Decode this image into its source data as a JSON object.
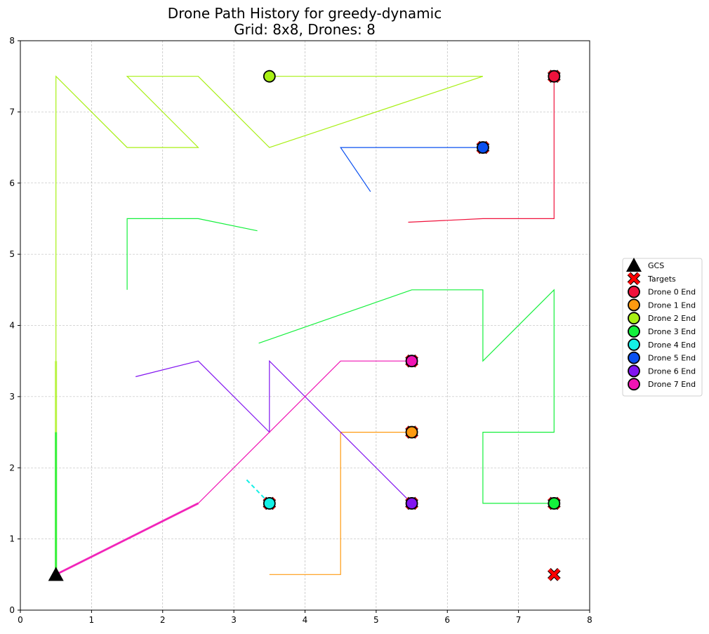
{
  "chart_data": {
    "type": "line",
    "title_line1": "Drone Path History for greedy-dynamic",
    "title_line2": "Grid: 8x8, Drones: 8",
    "xlabel": "",
    "ylabel": "",
    "xlim": [
      0,
      8
    ],
    "ylim": [
      0,
      8
    ],
    "xticks": [
      "0",
      "1",
      "2",
      "3",
      "4",
      "5",
      "6",
      "7",
      "8"
    ],
    "yticks": [
      "0",
      "1",
      "2",
      "3",
      "4",
      "5",
      "6",
      "7",
      "8"
    ],
    "grid": true,
    "legend_position": "right",
    "gcs": {
      "label": "GCS",
      "x": 0.5,
      "y": 0.5,
      "color": "#000000"
    },
    "targets": {
      "label": "Targets",
      "color": "#ff0000",
      "points": [
        [
          7.5,
          7.5
        ],
        [
          6.5,
          6.5
        ],
        [
          5.5,
          3.5
        ],
        [
          5.5,
          2.5
        ],
        [
          3.5,
          1.5
        ],
        [
          5.5,
          1.5
        ],
        [
          7.5,
          1.5
        ],
        [
          7.5,
          0.5
        ]
      ]
    },
    "series": [
      {
        "name": "Drone 0 End",
        "color": "#f0123c",
        "path": [
          [
            5.45,
            5.45
          ],
          [
            6.5,
            5.5
          ],
          [
            7.5,
            5.5
          ],
          [
            7.5,
            7.5
          ]
        ],
        "end": [
          7.5,
          7.5
        ]
      },
      {
        "name": "Drone 1 End",
        "color": "#ff9a10",
        "path": [
          [
            3.5,
            0.5
          ],
          [
            4.5,
            0.5
          ],
          [
            4.5,
            2.5
          ],
          [
            5.5,
            2.5
          ]
        ],
        "end": [
          5.5,
          2.5
        ]
      },
      {
        "name": "Drone 2 End",
        "color": "#a8f014",
        "path": [
          [
            0.5,
            3.5
          ],
          [
            0.5,
            7.5
          ],
          [
            1.5,
            6.5
          ],
          [
            2.5,
            6.5
          ],
          [
            1.5,
            7.5
          ],
          [
            2.5,
            7.5
          ],
          [
            3.5,
            6.5
          ],
          [
            6.5,
            7.5
          ],
          [
            3.5,
            7.5
          ]
        ],
        "end": [
          3.5,
          7.5
        ],
        "thick_segments": [
          [
            [
              0.5,
              0.5
            ],
            [
              0.5,
              3.5
            ]
          ]
        ]
      },
      {
        "name": "Drone 3 End",
        "color": "#14f03c",
        "path": [
          [
            3.35,
            3.75
          ],
          [
            5.5,
            4.5
          ],
          [
            6.5,
            4.5
          ],
          [
            6.5,
            3.5
          ],
          [
            7.5,
            4.5
          ],
          [
            7.5,
            2.5
          ],
          [
            6.5,
            2.5
          ],
          [
            6.5,
            1.5
          ],
          [
            7.5,
            1.5
          ]
        ],
        "extra_path": [
          [
            1.5,
            4.5
          ],
          [
            1.5,
            5.5
          ],
          [
            2.5,
            5.5
          ],
          [
            3.33,
            5.33
          ]
        ],
        "end": [
          7.5,
          1.5
        ],
        "thick_segments": [
          [
            [
              0.5,
              0.5
            ],
            [
              0.5,
              2.5
            ]
          ]
        ]
      },
      {
        "name": "Drone 4 End",
        "color": "#14f0e6",
        "path": [
          [
            3.18,
            1.83
          ],
          [
            3.5,
            1.5
          ]
        ],
        "dashed": true,
        "end": [
          3.5,
          1.5
        ]
      },
      {
        "name": "Drone 5 End",
        "color": "#0a50f0",
        "path": [
          [
            4.92,
            5.88
          ],
          [
            4.5,
            6.5
          ],
          [
            6.5,
            6.5
          ]
        ],
        "end": [
          6.5,
          6.5
        ]
      },
      {
        "name": "Drone 6 End",
        "color": "#8214f0",
        "path": [
          [
            1.62,
            3.28
          ],
          [
            2.5,
            3.5
          ],
          [
            3.5,
            2.5
          ],
          [
            3.5,
            3.5
          ],
          [
            5.5,
            1.5
          ]
        ],
        "end": [
          5.5,
          1.5
        ]
      },
      {
        "name": "Drone 7 End",
        "color": "#f014b4",
        "path": [
          [
            0.5,
            0.5
          ],
          [
            2.5,
            1.5
          ],
          [
            4.5,
            3.5
          ],
          [
            5.5,
            3.5
          ]
        ],
        "end": [
          5.5,
          3.5
        ],
        "thick_segments": [
          [
            [
              0.5,
              0.5
            ],
            [
              2.5,
              1.5
            ]
          ]
        ]
      }
    ]
  }
}
